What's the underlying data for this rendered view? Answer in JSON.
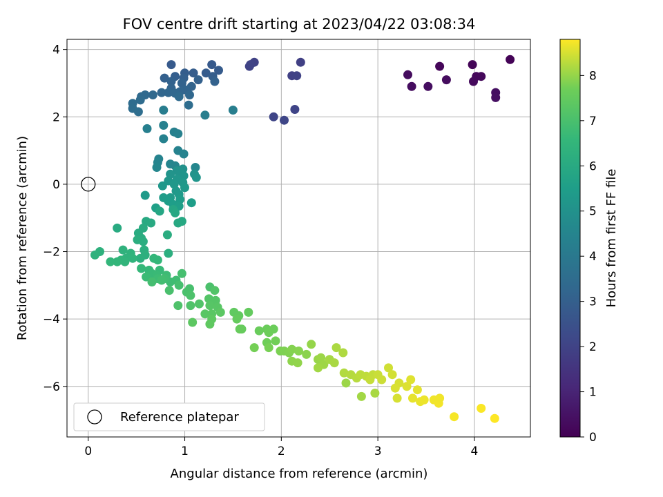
{
  "chart_data": {
    "type": "scatter",
    "title": "FOV centre drift starting at 2023/04/22 03:08:34",
    "xlabel": "Angular distance from reference (arcmin)",
    "ylabel": "Rotation from reference (arcmin)",
    "xlim": [
      -0.22,
      4.58
    ],
    "ylim": [
      -7.5,
      4.3
    ],
    "x_ticks": [
      0,
      1,
      2,
      3,
      4
    ],
    "y_ticks": [
      -6,
      -4,
      -2,
      0,
      2,
      4
    ],
    "x_tick_labels": [
      "0",
      "1",
      "2",
      "3",
      "4"
    ],
    "y_tick_labels": [
      "−6",
      "−4",
      "−2",
      "0",
      "2",
      "4"
    ],
    "grid": true,
    "legend": {
      "placement": "lower-left",
      "entries": [
        "Reference platepar"
      ]
    },
    "reference_point": {
      "x": 0,
      "y": 0
    },
    "colorbar": {
      "label": "Hours from first FF file",
      "colormap": "viridis",
      "range": [
        0,
        8.8
      ],
      "ticks": [
        0,
        1,
        2,
        3,
        4,
        5,
        6,
        7,
        8
      ],
      "tick_labels": [
        "0",
        "1",
        "2",
        "3",
        "4",
        "5",
        "6",
        "7",
        "8"
      ]
    },
    "points": [
      [
        4.37,
        3.7,
        0.05
      ],
      [
        3.98,
        3.55,
        0.1
      ],
      [
        3.64,
        3.5,
        0.15
      ],
      [
        4.02,
        3.2,
        0.2
      ],
      [
        4.07,
        3.2,
        0.22
      ],
      [
        3.99,
        3.05,
        0.25
      ],
      [
        3.31,
        3.25,
        0.3
      ],
      [
        3.71,
        3.1,
        0.32
      ],
      [
        3.35,
        2.9,
        0.35
      ],
      [
        3.52,
        2.9,
        0.38
      ],
      [
        4.22,
        2.72,
        0.4
      ],
      [
        4.22,
        2.57,
        0.42
      ],
      [
        2.2,
        3.62,
        1.9
      ],
      [
        2.11,
        3.22,
        1.92
      ],
      [
        2.16,
        3.22,
        1.95
      ],
      [
        1.72,
        3.62,
        1.97
      ],
      [
        1.67,
        3.5,
        2.0
      ],
      [
        1.68,
        3.55,
        2.02
      ],
      [
        2.14,
        2.22,
        2.05
      ],
      [
        1.92,
        2.0,
        2.08
      ],
      [
        2.03,
        1.9,
        2.1
      ],
      [
        0.86,
        3.55,
        2.8
      ],
      [
        1.28,
        3.55,
        2.82
      ],
      [
        1.35,
        3.38,
        2.85
      ],
      [
        1.22,
        3.3,
        2.88
      ],
      [
        1.09,
        3.3,
        2.9
      ],
      [
        1.0,
        3.3,
        2.92
      ],
      [
        1.29,
        3.2,
        2.95
      ],
      [
        0.9,
        3.2,
        2.97
      ],
      [
        0.99,
        3.15,
        3.0
      ],
      [
        0.79,
        3.15,
        3.02
      ],
      [
        1.14,
        3.1,
        3.05
      ],
      [
        1.31,
        3.05,
        3.07
      ],
      [
        0.86,
        3.05,
        3.1
      ],
      [
        0.97,
        3.0,
        3.12
      ],
      [
        1.07,
        2.9,
        3.15
      ],
      [
        0.86,
        2.85,
        3.17
      ],
      [
        1.01,
        2.8,
        3.2
      ],
      [
        0.95,
        2.75,
        3.22
      ],
      [
        0.76,
        2.72,
        3.25
      ],
      [
        0.83,
        2.72,
        3.27
      ],
      [
        0.9,
        2.7,
        3.3
      ],
      [
        1.05,
        2.65,
        3.32
      ],
      [
        0.67,
        2.65,
        3.35
      ],
      [
        0.59,
        2.65,
        3.37
      ],
      [
        0.55,
        2.6,
        3.4
      ],
      [
        0.94,
        2.6,
        3.42
      ],
      [
        0.54,
        2.5,
        3.45
      ],
      [
        0.46,
        2.4,
        3.47
      ],
      [
        1.04,
        2.35,
        3.5
      ],
      [
        0.46,
        2.25,
        3.52
      ],
      [
        0.52,
        2.15,
        3.55
      ],
      [
        0.78,
        2.2,
        4.2
      ],
      [
        1.21,
        2.05,
        4.22
      ],
      [
        1.5,
        2.2,
        4.25
      ],
      [
        0.61,
        1.65,
        4.27
      ],
      [
        0.78,
        1.75,
        4.3
      ],
      [
        0.89,
        1.55,
        4.32
      ],
      [
        0.93,
        1.5,
        4.35
      ],
      [
        0.78,
        1.35,
        4.37
      ],
      [
        0.93,
        1.0,
        4.4
      ],
      [
        0.99,
        0.9,
        4.42
      ],
      [
        0.73,
        0.75,
        4.45
      ],
      [
        0.72,
        0.65,
        4.47
      ],
      [
        0.85,
        0.6,
        4.5
      ],
      [
        0.9,
        0.55,
        4.52
      ],
      [
        1.11,
        0.5,
        4.55
      ],
      [
        0.71,
        0.5,
        4.57
      ],
      [
        0.98,
        0.45,
        5.0
      ],
      [
        0.92,
        0.4,
        5.02
      ],
      [
        0.95,
        0.35,
        5.05
      ],
      [
        1.1,
        0.3,
        5.07
      ],
      [
        0.85,
        0.3,
        5.1
      ],
      [
        0.99,
        0.25,
        5.12
      ],
      [
        1.12,
        0.2,
        5.15
      ],
      [
        0.92,
        0.15,
        5.17
      ],
      [
        0.83,
        0.1,
        5.2
      ],
      [
        0.98,
        0.05,
        5.22
      ],
      [
        0.89,
        0.0,
        5.25
      ],
      [
        0.77,
        -0.05,
        5.27
      ],
      [
        1.0,
        -0.1,
        5.3
      ],
      [
        0.91,
        -0.2,
        5.32
      ],
      [
        0.94,
        -0.3,
        5.35
      ],
      [
        0.59,
        -0.33,
        5.37
      ],
      [
        0.85,
        -0.4,
        5.4
      ],
      [
        0.78,
        -0.4,
        5.42
      ],
      [
        0.95,
        -0.45,
        5.45
      ],
      [
        0.83,
        -0.5,
        5.47
      ],
      [
        1.07,
        -0.55,
        5.5
      ],
      [
        0.88,
        -0.6,
        5.52
      ],
      [
        0.94,
        -0.65,
        5.55
      ],
      [
        0.7,
        -0.7,
        5.57
      ],
      [
        0.88,
        -0.75,
        5.85
      ],
      [
        0.74,
        -0.8,
        5.87
      ],
      [
        0.9,
        -0.85,
        5.9
      ],
      [
        0.97,
        -1.1,
        5.92
      ],
      [
        0.93,
        -1.15,
        5.95
      ],
      [
        0.6,
        -1.1,
        5.97
      ],
      [
        0.65,
        -1.15,
        6.0
      ],
      [
        0.3,
        -1.3,
        6.02
      ],
      [
        0.57,
        -1.3,
        6.05
      ],
      [
        0.52,
        -1.45,
        6.07
      ],
      [
        0.82,
        -1.5,
        6.1
      ],
      [
        0.55,
        -1.6,
        6.12
      ],
      [
        0.57,
        -1.7,
        6.15
      ],
      [
        0.51,
        -1.65,
        6.17
      ],
      [
        0.58,
        -1.95,
        6.2
      ],
      [
        0.83,
        -2.05,
        6.22
      ],
      [
        0.59,
        -2.1,
        6.25
      ],
      [
        0.54,
        -2.2,
        6.27
      ],
      [
        0.12,
        -2.0,
        6.3
      ],
      [
        0.07,
        -2.1,
        6.32
      ],
      [
        0.36,
        -1.95,
        6.35
      ],
      [
        0.44,
        -2.05,
        6.37
      ],
      [
        0.39,
        -2.2,
        6.4
      ],
      [
        0.46,
        -2.2,
        6.42
      ],
      [
        0.34,
        -2.25,
        6.45
      ],
      [
        0.38,
        -2.3,
        6.47
      ],
      [
        0.23,
        -2.3,
        6.5
      ],
      [
        0.3,
        -2.3,
        6.52
      ],
      [
        0.68,
        -2.2,
        6.55
      ],
      [
        0.72,
        -2.25,
        6.57
      ],
      [
        0.55,
        -2.5,
        6.6
      ],
      [
        0.63,
        -2.55,
        6.62
      ],
      [
        0.74,
        -2.55,
        6.65
      ],
      [
        0.66,
        -2.65,
        6.67
      ],
      [
        0.71,
        -2.7,
        6.7
      ],
      [
        0.6,
        -2.75,
        6.72
      ],
      [
        0.81,
        -2.7,
        6.75
      ],
      [
        0.72,
        -2.8,
        6.77
      ],
      [
        0.85,
        -2.9,
        6.8
      ],
      [
        0.91,
        -2.85,
        6.82
      ],
      [
        0.79,
        -2.8,
        6.85
      ],
      [
        0.76,
        -2.85,
        6.87
      ],
      [
        0.66,
        -2.9,
        6.9
      ],
      [
        0.97,
        -2.65,
        6.92
      ],
      [
        0.94,
        -3.0,
        6.95
      ],
      [
        1.05,
        -3.1,
        6.97
      ],
      [
        0.84,
        -3.15,
        7.0
      ],
      [
        1.02,
        -3.2,
        7.02
      ],
      [
        1.26,
        -3.05,
        7.05
      ],
      [
        1.06,
        -3.3,
        7.07
      ],
      [
        0.93,
        -3.6,
        7.1
      ],
      [
        1.06,
        -3.6,
        7.12
      ],
      [
        1.15,
        -3.55,
        7.15
      ],
      [
        1.31,
        -3.15,
        7.17
      ],
      [
        1.25,
        -3.4,
        7.2
      ],
      [
        1.32,
        -3.45,
        7.22
      ],
      [
        1.26,
        -3.6,
        7.25
      ],
      [
        1.34,
        -3.65,
        7.27
      ],
      [
        1.21,
        -3.85,
        7.3
      ],
      [
        1.28,
        -3.85,
        7.32
      ],
      [
        1.37,
        -3.8,
        7.35
      ],
      [
        1.08,
        -4.1,
        7.37
      ],
      [
        1.28,
        -4.0,
        7.4
      ],
      [
        1.26,
        -4.15,
        7.42
      ],
      [
        1.51,
        -3.8,
        7.45
      ],
      [
        1.56,
        -3.9,
        7.47
      ],
      [
        1.66,
        -3.8,
        7.5
      ],
      [
        1.54,
        -4.0,
        7.52
      ],
      [
        1.59,
        -4.3,
        7.55
      ],
      [
        1.57,
        -4.3,
        7.57
      ],
      [
        1.77,
        -4.35,
        7.6
      ],
      [
        1.85,
        -4.3,
        7.62
      ],
      [
        1.92,
        -4.3,
        7.65
      ],
      [
        1.87,
        -4.4,
        7.67
      ],
      [
        1.85,
        -4.7,
        7.7
      ],
      [
        1.94,
        -4.65,
        7.72
      ],
      [
        1.72,
        -4.85,
        7.75
      ],
      [
        1.87,
        -4.85,
        7.77
      ],
      [
        1.99,
        -4.95,
        7.8
      ],
      [
        2.03,
        -4.95,
        7.82
      ],
      [
        2.08,
        -5.0,
        7.85
      ],
      [
        2.11,
        -4.9,
        7.87
      ],
      [
        2.18,
        -4.95,
        7.9
      ],
      [
        2.26,
        -5.05,
        7.92
      ],
      [
        2.11,
        -5.25,
        7.95
      ],
      [
        2.17,
        -5.3,
        7.97
      ],
      [
        2.31,
        -4.75,
        8.0
      ],
      [
        2.38,
        -5.2,
        8.02
      ],
      [
        2.41,
        -5.15,
        8.05
      ],
      [
        2.44,
        -5.35,
        8.07
      ],
      [
        2.38,
        -5.45,
        8.1
      ],
      [
        2.5,
        -5.2,
        8.12
      ],
      [
        2.55,
        -5.3,
        8.15
      ],
      [
        2.57,
        -4.85,
        8.17
      ],
      [
        2.64,
        -5.0,
        8.2
      ],
      [
        2.65,
        -5.6,
        8.22
      ],
      [
        2.72,
        -5.65,
        8.25
      ],
      [
        2.78,
        -5.75,
        8.27
      ],
      [
        2.82,
        -5.65,
        8.3
      ],
      [
        2.88,
        -5.7,
        8.32
      ],
      [
        2.95,
        -5.65,
        8.35
      ],
      [
        2.92,
        -5.8,
        8.37
      ],
      [
        3.0,
        -5.65,
        8.4
      ],
      [
        3.04,
        -5.8,
        8.42
      ],
      [
        3.11,
        -5.45,
        8.45
      ],
      [
        3.15,
        -5.65,
        8.47
      ],
      [
        3.22,
        -5.9,
        8.5
      ],
      [
        3.18,
        -6.05,
        8.52
      ],
      [
        3.3,
        -6.0,
        8.55
      ],
      [
        3.34,
        -5.8,
        8.57
      ],
      [
        3.41,
        -6.1,
        8.6
      ],
      [
        3.36,
        -6.35,
        8.62
      ],
      [
        3.44,
        -6.45,
        8.65
      ],
      [
        3.48,
        -6.4,
        8.67
      ],
      [
        3.58,
        -6.4,
        8.7
      ],
      [
        2.67,
        -5.9,
        8.05
      ],
      [
        2.83,
        -6.3,
        8.1
      ],
      [
        2.97,
        -6.2,
        8.15
      ],
      [
        3.79,
        -6.9,
        8.75
      ],
      [
        4.07,
        -6.65,
        8.78
      ],
      [
        4.21,
        -6.95,
        8.8
      ],
      [
        3.63,
        -6.5,
        8.72
      ],
      [
        3.64,
        -6.35,
        8.7
      ],
      [
        3.2,
        -6.35,
        8.5
      ]
    ]
  }
}
